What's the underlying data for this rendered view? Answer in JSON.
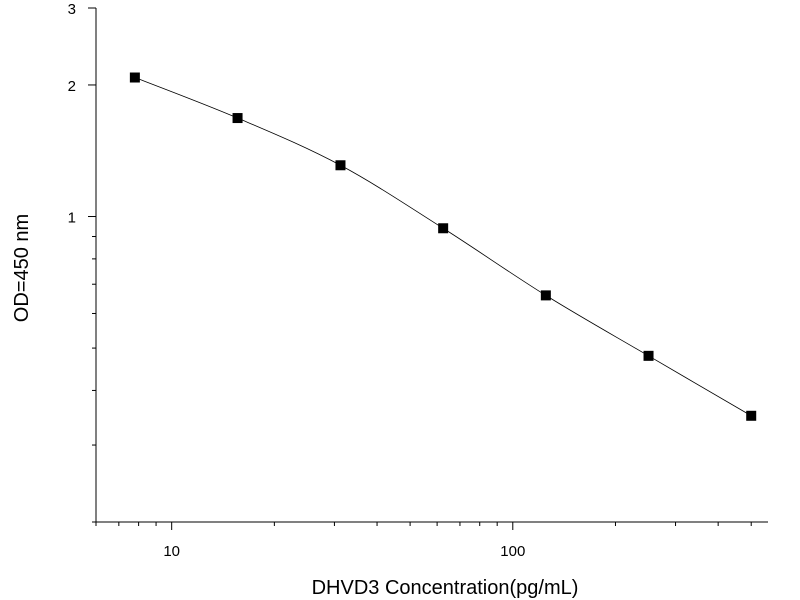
{
  "chart_data": {
    "type": "line",
    "title": "",
    "xlabel": "DHVD3 Concentration(pg/mL)",
    "ylabel": "OD=450 nm",
    "x_scale": "log",
    "y_scale": "log",
    "xlim": [
      6,
      560
    ],
    "ylim": [
      0.2,
      3
    ],
    "x_ticks": [
      10,
      100
    ],
    "y_ticks": [
      1,
      2,
      3
    ],
    "grid": false,
    "marker": "square",
    "series": [
      {
        "x": [
          7.8,
          15.6,
          31.25,
          62.5,
          125,
          250,
          500
        ],
        "y": [
          2.08,
          1.68,
          1.31,
          0.94,
          0.66,
          0.48,
          0.35
        ]
      }
    ]
  }
}
